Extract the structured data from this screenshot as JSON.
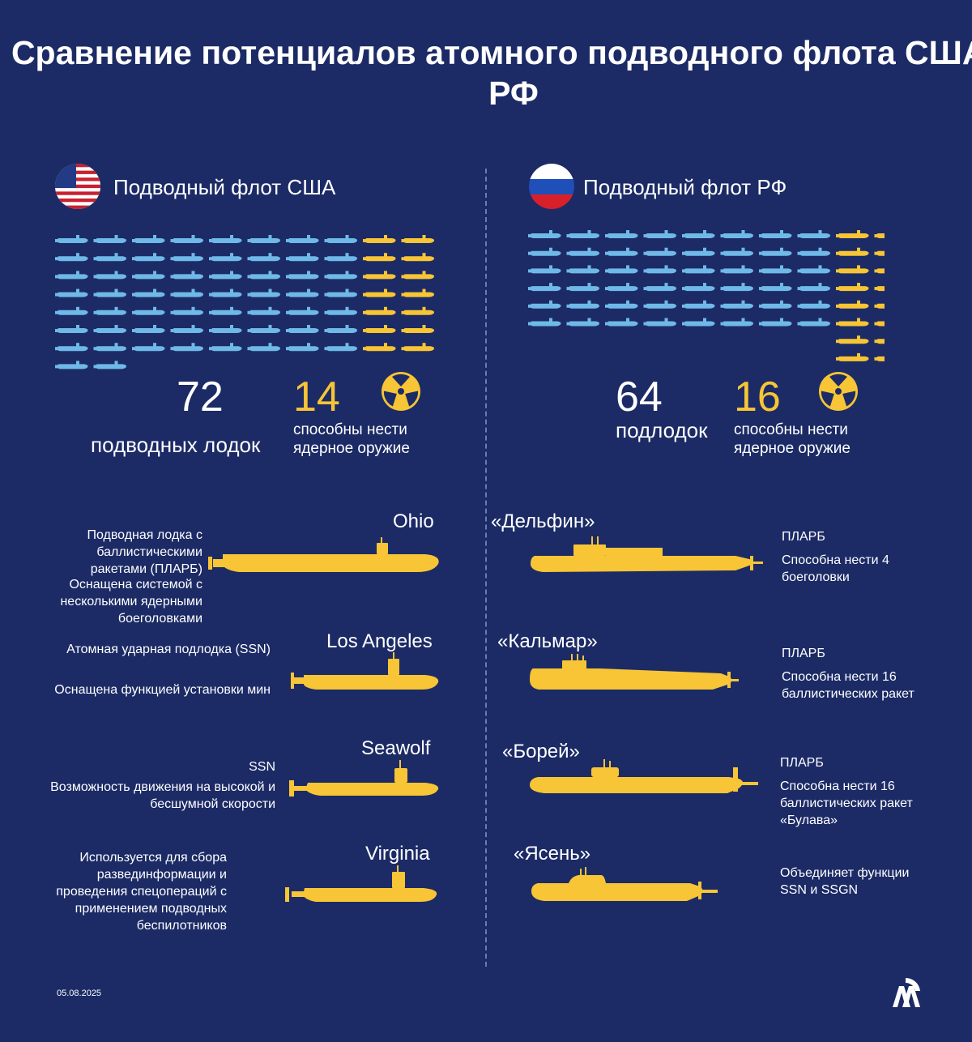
{
  "title": "Сравнение потенциалов атомного подводного флота США и РФ",
  "colors": {
    "background": "#1c2b66",
    "blue_icon": "#6fb9e8",
    "yellow_icon": "#f7c535"
  },
  "usa": {
    "flag_icon": "usa-flag-icon",
    "header": "Подводный флот США",
    "total_number": "72",
    "total_caption": "подводных лодок",
    "nuclear_number": "14",
    "nuclear_caption": "способны нести ядерное оружие",
    "fleet": {
      "total": 72,
      "nuclear": 14
    },
    "submarines": [
      {
        "name": "Ohio",
        "descriptions": [
          "Подводная лодка с баллистическими ракетами (ПЛАРБ)",
          "Оснащена системой с несколькими ядерными боеголовками"
        ]
      },
      {
        "name": "Los Angeles",
        "descriptions": [
          "Атомная ударная подлодка (SSN)",
          "Оснащена функцией установки мин"
        ]
      },
      {
        "name": "Seawolf",
        "descriptions": [
          "SSN",
          "Возможность движения на высокой и бесшумной скорости"
        ]
      },
      {
        "name": "Virginia",
        "descriptions": [
          "Используется для сбора развединформации и проведения спецопераций с применением подводных беспилотников"
        ]
      }
    ]
  },
  "russia": {
    "flag_icon": "russia-flag-icon",
    "header": "Подводный флот РФ",
    "total_number": "64",
    "total_caption": "подлодок",
    "nuclear_number": "16",
    "nuclear_caption": "способны нести ядерное оружие",
    "fleet": {
      "total": 64,
      "nuclear": 16
    },
    "submarines": [
      {
        "name": "«Дельфин»",
        "descriptions": [
          "ПЛАРБ",
          "Способна нести 4 боеголовки"
        ]
      },
      {
        "name": "«Кальмар»",
        "descriptions": [
          "ПЛАРБ",
          "Способна нести 16 баллистических ракет"
        ]
      },
      {
        "name": "«Борей»",
        "descriptions": [
          "ПЛАРБ",
          "Способна нести 16 баллистических ракет «Булава»"
        ]
      },
      {
        "name": "«Ясень»",
        "descriptions": [
          "Объединяет функции SSN и SSGN"
        ]
      }
    ]
  },
  "footer": {
    "date": "05.08.2025",
    "logo": "aa-logo-icon"
  }
}
